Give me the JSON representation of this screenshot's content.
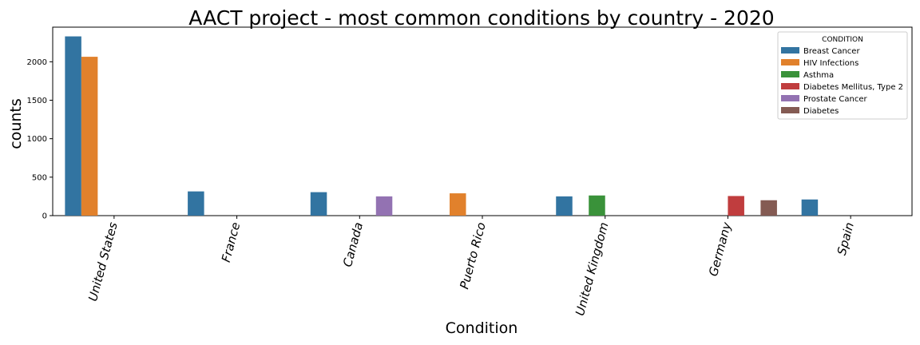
{
  "chart_data": {
    "type": "bar",
    "title": "AACT project - most common conditions by country - 2020",
    "xlabel": "Condition",
    "ylabel": "counts",
    "ylim": [
      0,
      2450
    ],
    "yticks": [
      0,
      500,
      1000,
      1500,
      2000
    ],
    "categories": [
      "United States",
      "France",
      "Canada",
      "Puerto Rico",
      "United Kingdom",
      "Germany",
      "Spain"
    ],
    "legend": {
      "title": "CONDITION",
      "placement": "top-right"
    },
    "series": [
      {
        "name": "Breast Cancer",
        "color": "#3274a1",
        "values": [
          2330,
          315,
          305,
          0,
          250,
          0,
          210
        ]
      },
      {
        "name": "HIV Infections",
        "color": "#e1812c",
        "values": [
          2065,
          0,
          0,
          290,
          0,
          0,
          0
        ]
      },
      {
        "name": "Asthma",
        "color": "#3a923a",
        "values": [
          0,
          0,
          0,
          0,
          262,
          0,
          0
        ]
      },
      {
        "name": "Diabetes Mellitus, Type 2",
        "color": "#c03d3e",
        "values": [
          0,
          0,
          0,
          0,
          0,
          255,
          0
        ]
      },
      {
        "name": "Prostate Cancer",
        "color": "#9372b2",
        "values": [
          0,
          0,
          250,
          0,
          0,
          0,
          0
        ]
      },
      {
        "name": "Diabetes",
        "color": "#845b53",
        "values": [
          0,
          0,
          0,
          0,
          0,
          200,
          0
        ]
      }
    ]
  }
}
